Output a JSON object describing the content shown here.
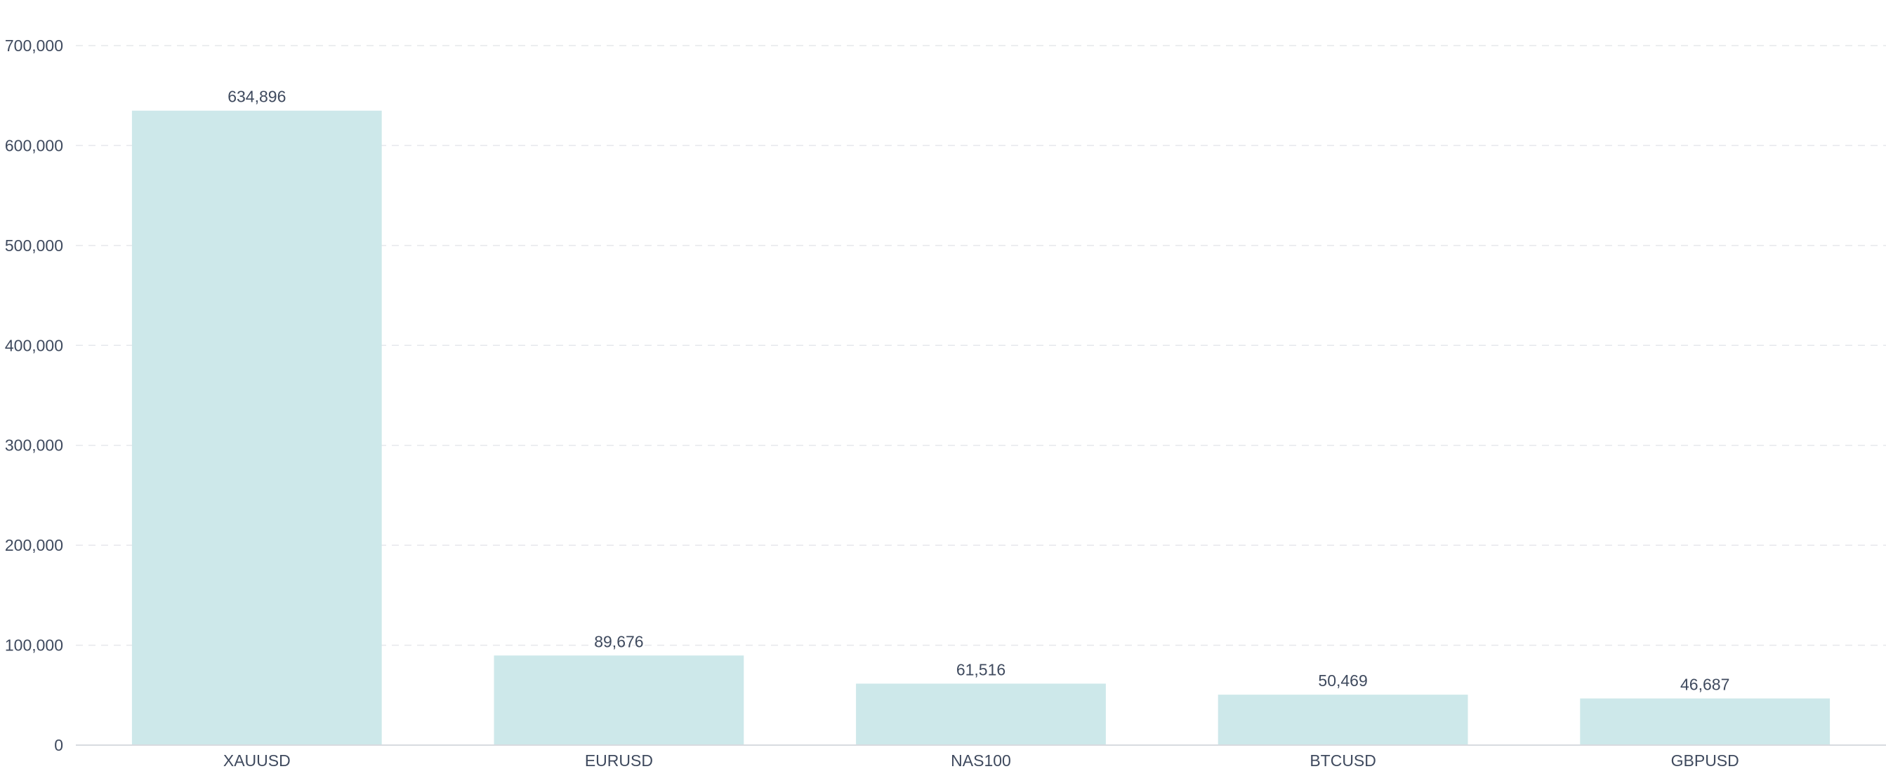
{
  "chart_data": {
    "type": "bar",
    "title": "",
    "xlabel": "",
    "ylabel": "",
    "categories": [
      "XAUUSD",
      "EURUSD",
      "NAS100",
      "BTCUSD",
      "GBPUSD"
    ],
    "values": [
      634896,
      89676,
      61516,
      50469,
      46687
    ],
    "value_labels": [
      "634,896",
      "89,676",
      "61,516",
      "50,469",
      "46,687"
    ],
    "ylim": [
      0,
      700000
    ],
    "yticks": [
      0,
      100000,
      200000,
      300000,
      400000,
      500000,
      600000,
      700000
    ],
    "ytick_labels": [
      "0",
      "100,000",
      "200,000",
      "300,000",
      "400,000",
      "500,000",
      "600,000",
      "700,000"
    ],
    "grid": true,
    "legend": "none",
    "colors": {
      "bar": "#cde8ea",
      "text": "#3f4a5e",
      "grid": "#e6e8ec"
    }
  }
}
